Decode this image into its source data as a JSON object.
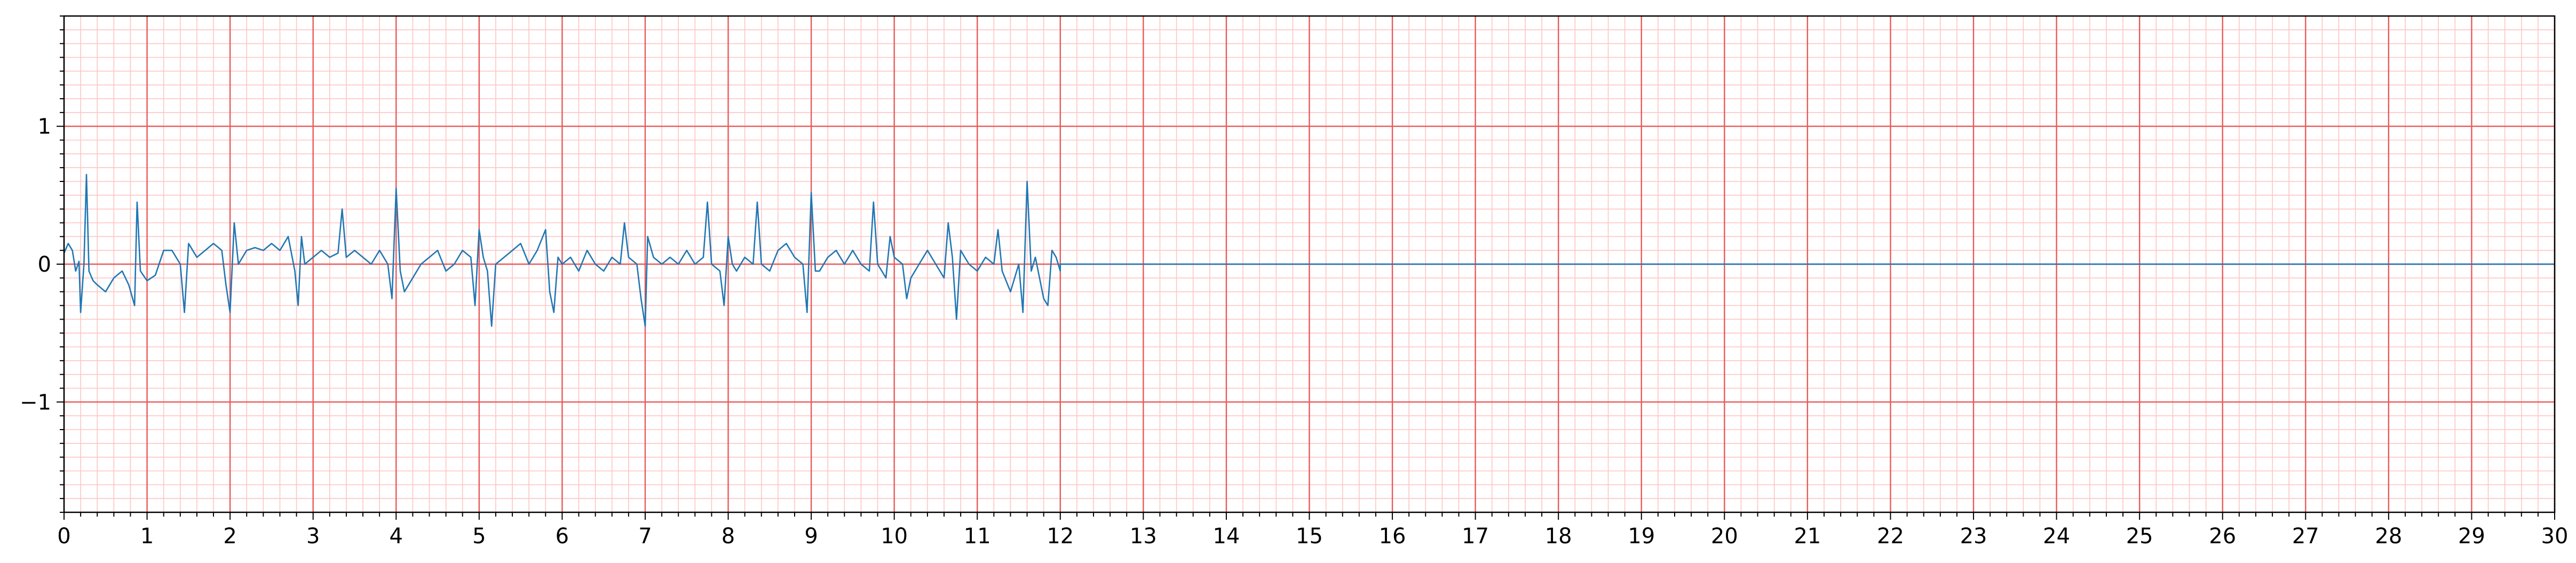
{
  "chart_data": {
    "type": "line",
    "title": "",
    "xlabel": "",
    "ylabel": "",
    "xlim": [
      0,
      30
    ],
    "ylim": [
      -1.8,
      1.8
    ],
    "x_major_step": 1,
    "x_minor_step": 0.2,
    "y_major_step": 1,
    "y_minor_step": 0.1,
    "x_ticks": [
      "0",
      "1",
      "2",
      "3",
      "4",
      "5",
      "6",
      "7",
      "8",
      "9",
      "10",
      "11",
      "12",
      "13",
      "14",
      "15",
      "16",
      "17",
      "18",
      "19",
      "20",
      "21",
      "22",
      "23",
      "24",
      "25",
      "26",
      "27",
      "28",
      "29",
      "30"
    ],
    "y_ticks": [
      {
        "value": 1,
        "label": "1"
      },
      {
        "value": 0,
        "label": "0"
      },
      {
        "value": -1,
        "label": "−1"
      }
    ],
    "grid": true,
    "colors": {
      "grid_major": "#e85a5a",
      "grid_minor": "#ffc4c4",
      "line": "#1f77b4",
      "axis": "#000000"
    },
    "series": [
      {
        "points": [
          [
            0.0,
            0.08
          ],
          [
            0.05,
            0.15
          ],
          [
            0.1,
            0.1
          ],
          [
            0.14,
            -0.05
          ],
          [
            0.18,
            0.02
          ],
          [
            0.2,
            -0.35
          ],
          [
            0.24,
            0.0
          ],
          [
            0.27,
            0.65
          ],
          [
            0.3,
            -0.05
          ],
          [
            0.35,
            -0.12
          ],
          [
            0.4,
            -0.15
          ],
          [
            0.5,
            -0.2
          ],
          [
            0.6,
            -0.1
          ],
          [
            0.7,
            -0.05
          ],
          [
            0.78,
            -0.15
          ],
          [
            0.85,
            -0.3
          ],
          [
            0.88,
            0.45
          ],
          [
            0.92,
            -0.05
          ],
          [
            1.0,
            -0.12
          ],
          [
            1.1,
            -0.08
          ],
          [
            1.2,
            0.1
          ],
          [
            1.3,
            0.1
          ],
          [
            1.4,
            0.0
          ],
          [
            1.45,
            -0.35
          ],
          [
            1.5,
            0.15
          ],
          [
            1.6,
            0.05
          ],
          [
            1.7,
            0.1
          ],
          [
            1.8,
            0.15
          ],
          [
            1.9,
            0.1
          ],
          [
            1.95,
            -0.15
          ],
          [
            2.0,
            -0.35
          ],
          [
            2.05,
            0.3
          ],
          [
            2.1,
            0.0
          ],
          [
            2.2,
            0.1
          ],
          [
            2.3,
            0.12
          ],
          [
            2.4,
            0.1
          ],
          [
            2.5,
            0.15
          ],
          [
            2.6,
            0.1
          ],
          [
            2.7,
            0.2
          ],
          [
            2.78,
            -0.05
          ],
          [
            2.82,
            -0.3
          ],
          [
            2.86,
            0.2
          ],
          [
            2.9,
            0.0
          ],
          [
            3.0,
            0.05
          ],
          [
            3.1,
            0.1
          ],
          [
            3.2,
            0.05
          ],
          [
            3.3,
            0.08
          ],
          [
            3.35,
            0.4
          ],
          [
            3.4,
            0.05
          ],
          [
            3.5,
            0.1
          ],
          [
            3.6,
            0.05
          ],
          [
            3.7,
            0.0
          ],
          [
            3.8,
            0.1
          ],
          [
            3.9,
            0.0
          ],
          [
            3.95,
            -0.25
          ],
          [
            4.0,
            0.55
          ],
          [
            4.05,
            -0.05
          ],
          [
            4.1,
            -0.2
          ],
          [
            4.2,
            -0.1
          ],
          [
            4.3,
            0.0
          ],
          [
            4.4,
            0.05
          ],
          [
            4.5,
            0.1
          ],
          [
            4.6,
            -0.05
          ],
          [
            4.7,
            0.0
          ],
          [
            4.8,
            0.1
          ],
          [
            4.9,
            0.05
          ],
          [
            4.95,
            -0.3
          ],
          [
            5.0,
            0.25
          ],
          [
            5.05,
            0.05
          ],
          [
            5.1,
            -0.05
          ],
          [
            5.15,
            -0.45
          ],
          [
            5.2,
            0.0
          ],
          [
            5.3,
            0.05
          ],
          [
            5.4,
            0.1
          ],
          [
            5.5,
            0.15
          ],
          [
            5.6,
            0.0
          ],
          [
            5.7,
            0.1
          ],
          [
            5.8,
            0.25
          ],
          [
            5.85,
            -0.2
          ],
          [
            5.9,
            -0.35
          ],
          [
            5.95,
            0.05
          ],
          [
            6.0,
            0.0
          ],
          [
            6.1,
            0.05
          ],
          [
            6.2,
            -0.05
          ],
          [
            6.3,
            0.1
          ],
          [
            6.4,
            0.0
          ],
          [
            6.5,
            -0.05
          ],
          [
            6.6,
            0.05
          ],
          [
            6.7,
            0.0
          ],
          [
            6.75,
            0.3
          ],
          [
            6.8,
            0.05
          ],
          [
            6.9,
            0.0
          ],
          [
            6.95,
            -0.25
          ],
          [
            7.0,
            -0.45
          ],
          [
            7.03,
            0.2
          ],
          [
            7.1,
            0.05
          ],
          [
            7.2,
            0.0
          ],
          [
            7.3,
            0.05
          ],
          [
            7.4,
            0.0
          ],
          [
            7.5,
            0.1
          ],
          [
            7.6,
            0.0
          ],
          [
            7.7,
            0.05
          ],
          [
            7.75,
            0.45
          ],
          [
            7.8,
            0.0
          ],
          [
            7.9,
            -0.05
          ],
          [
            7.95,
            -0.3
          ],
          [
            8.0,
            0.2
          ],
          [
            8.05,
            0.0
          ],
          [
            8.1,
            -0.05
          ],
          [
            8.2,
            0.05
          ],
          [
            8.3,
            0.0
          ],
          [
            8.35,
            0.45
          ],
          [
            8.4,
            0.0
          ],
          [
            8.5,
            -0.05
          ],
          [
            8.6,
            0.1
          ],
          [
            8.7,
            0.15
          ],
          [
            8.8,
            0.05
          ],
          [
            8.9,
            0.0
          ],
          [
            8.95,
            -0.35
          ],
          [
            9.0,
            0.52
          ],
          [
            9.05,
            -0.05
          ],
          [
            9.1,
            -0.05
          ],
          [
            9.2,
            0.05
          ],
          [
            9.3,
            0.1
          ],
          [
            9.4,
            0.0
          ],
          [
            9.5,
            0.1
          ],
          [
            9.6,
            0.0
          ],
          [
            9.7,
            -0.05
          ],
          [
            9.75,
            0.45
          ],
          [
            9.8,
            0.0
          ],
          [
            9.9,
            -0.1
          ],
          [
            9.95,
            0.2
          ],
          [
            10.0,
            0.05
          ],
          [
            10.1,
            0.0
          ],
          [
            10.15,
            -0.25
          ],
          [
            10.2,
            -0.1
          ],
          [
            10.3,
            0.0
          ],
          [
            10.4,
            0.1
          ],
          [
            10.5,
            0.0
          ],
          [
            10.6,
            -0.1
          ],
          [
            10.65,
            0.3
          ],
          [
            10.7,
            0.05
          ],
          [
            10.75,
            -0.4
          ],
          [
            10.8,
            0.1
          ],
          [
            10.9,
            0.0
          ],
          [
            11.0,
            -0.05
          ],
          [
            11.1,
            0.05
          ],
          [
            11.2,
            0.0
          ],
          [
            11.25,
            0.25
          ],
          [
            11.3,
            -0.05
          ],
          [
            11.4,
            -0.2
          ],
          [
            11.5,
            0.0
          ],
          [
            11.55,
            -0.35
          ],
          [
            11.6,
            0.6
          ],
          [
            11.65,
            -0.05
          ],
          [
            11.7,
            0.05
          ],
          [
            11.75,
            -0.1
          ],
          [
            11.8,
            -0.25
          ],
          [
            11.85,
            -0.3
          ],
          [
            11.9,
            0.1
          ],
          [
            11.95,
            0.05
          ],
          [
            12.0,
            -0.05
          ],
          [
            12.0,
            0.0
          ],
          [
            30.0,
            0.0
          ]
        ]
      }
    ]
  }
}
